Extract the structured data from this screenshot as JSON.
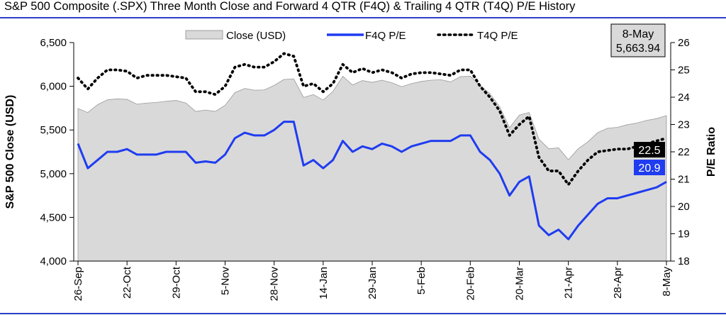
{
  "title": "S&P 500 Composite (.SPX) Three Month Close and Forward 4 QTR (F4Q) & Trailing 4 QTR (T4Q) P/E History",
  "chart_data": {
    "type": "area",
    "title": "S&P 500 Composite (.SPX) Three Month Close and Forward 4 QTR (F4Q) & Trailing 4 QTR (T4Q) P/E History",
    "ylabel": "S&P 500 Close (USD)",
    "y2label": "P/E Ratio",
    "ylim": [
      4000,
      6500
    ],
    "y2lim": [
      18,
      26
    ],
    "y_ticks": [
      "4,000",
      "4,500",
      "5,000",
      "5,500",
      "6,000",
      "6,500"
    ],
    "y2_ticks": [
      "18",
      "19",
      "20",
      "21",
      "22",
      "23",
      "24",
      "25",
      "26"
    ],
    "x_ticks": [
      "26-Sep",
      "22-Oct",
      "29-Oct",
      "5-Nov",
      "28-Nov",
      "14-Jan",
      "29-Jan",
      "5-Feb",
      "20-Feb",
      "20-Mar",
      "21-Apr",
      "28-Apr",
      "8-May"
    ],
    "x_tick_index": [
      0,
      5,
      10,
      15,
      20,
      25,
      30,
      35,
      40,
      45,
      50,
      55,
      60
    ],
    "legend_position": "top",
    "series": [
      {
        "name": "Close (USD)",
        "kind": "area",
        "axis": "left",
        "color": "#d9d9d9",
        "values": [
          5745,
          5700,
          5790,
          5845,
          5855,
          5850,
          5795,
          5808,
          5815,
          5828,
          5838,
          5808,
          5712,
          5728,
          5712,
          5782,
          5928,
          5975,
          5955,
          5958,
          6010,
          6078,
          6085,
          5872,
          5905,
          5842,
          5942,
          6115,
          6015,
          6065,
          6045,
          6070,
          6040,
          5995,
          6030,
          6055,
          6070,
          6075,
          6050,
          6110,
          6115,
          6010,
          5915,
          5765,
          5525,
          5670,
          5700,
          5395,
          5285,
          5295,
          5160,
          5285,
          5365,
          5470,
          5520,
          5530,
          5560,
          5580,
          5610,
          5630,
          5663.94
        ]
      },
      {
        "name": "F4Q P/E",
        "kind": "line",
        "axis": "right",
        "color": "#1f3cf0",
        "values": [
          22.3,
          21.4,
          21.7,
          22.0,
          22.0,
          22.1,
          21.9,
          21.9,
          21.9,
          22.0,
          22.0,
          22.0,
          21.6,
          21.65,
          21.6,
          21.9,
          22.5,
          22.7,
          22.6,
          22.6,
          22.8,
          23.1,
          23.1,
          21.5,
          21.7,
          21.4,
          21.7,
          22.4,
          22.0,
          22.2,
          22.1,
          22.3,
          22.2,
          22.0,
          22.2,
          22.3,
          22.4,
          22.4,
          22.4,
          22.6,
          22.6,
          22.0,
          21.7,
          21.2,
          20.4,
          20.9,
          21.1,
          19.3,
          18.95,
          19.15,
          18.8,
          19.3,
          19.7,
          20.1,
          20.3,
          20.3,
          20.4,
          20.5,
          20.6,
          20.7,
          20.9
        ]
      },
      {
        "name": "T4Q P/E",
        "kind": "line",
        "axis": "right",
        "style": "dotted",
        "color": "#000000",
        "values": [
          24.7,
          24.3,
          24.7,
          25.0,
          25.0,
          24.95,
          24.7,
          24.8,
          24.8,
          24.8,
          24.75,
          24.7,
          24.2,
          24.2,
          24.1,
          24.4,
          25.1,
          25.2,
          25.1,
          25.1,
          25.3,
          25.6,
          25.5,
          24.4,
          24.5,
          24.2,
          24.5,
          25.2,
          24.9,
          25.05,
          24.9,
          25.0,
          24.9,
          24.7,
          24.85,
          24.9,
          24.9,
          24.85,
          24.8,
          25.0,
          25.0,
          24.4,
          24.0,
          23.5,
          22.6,
          23.0,
          23.3,
          21.8,
          21.3,
          21.3,
          20.8,
          21.3,
          21.7,
          22.0,
          22.05,
          22.1,
          22.1,
          22.2,
          22.3,
          22.4,
          22.5
        ]
      }
    ],
    "callouts": {
      "date": "8-May",
      "close": "5,663.94",
      "t4q": "22.5",
      "f4q": "20.9"
    }
  }
}
